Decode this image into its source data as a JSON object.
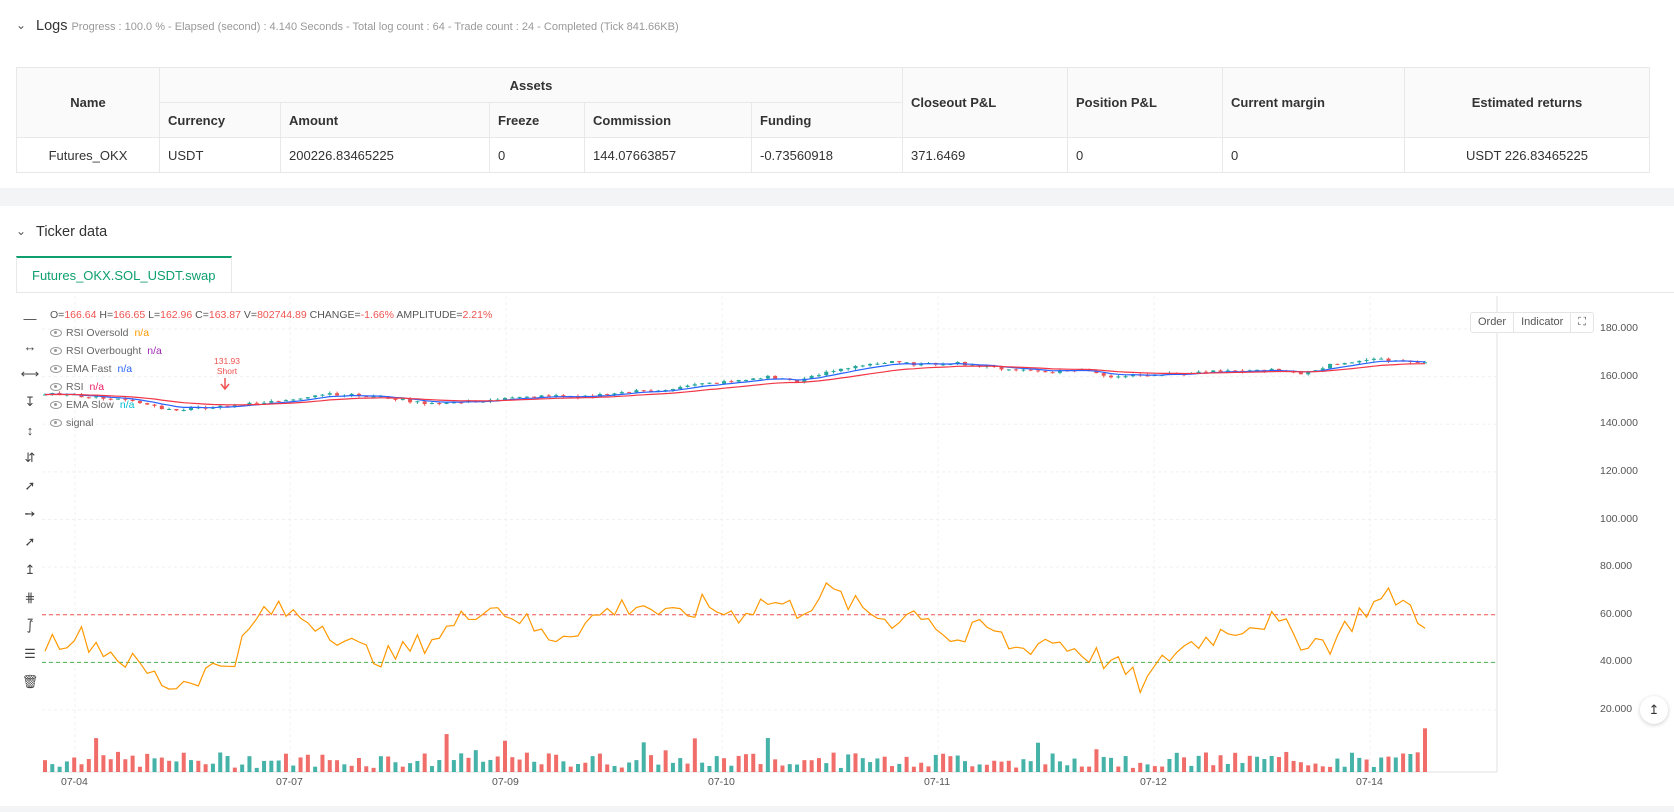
{
  "logs": {
    "title": "Logs",
    "status": "Progress : 100.0 % - Elapsed (second) : 4.140  Seconds - Total log count : 64 - Trade count : 24 - Completed (Tick 841.66KB)"
  },
  "assets_table": {
    "headers": {
      "name": "Name",
      "assets": "Assets",
      "currency": "Currency",
      "amount": "Amount",
      "freeze": "Freeze",
      "commission": "Commission",
      "funding": "Funding",
      "closeout": "Closeout P&L",
      "position": "Position P&L",
      "margin": "Current margin",
      "returns": "Estimated returns"
    },
    "row": {
      "name": "Futures_OKX",
      "currency": "USDT",
      "amount": "200226.83465225",
      "freeze": "0",
      "commission": "144.07663857",
      "funding": "-0.73560918",
      "closeout": "371.6469",
      "position": "0",
      "margin": "0",
      "returns": "USDT 226.83465225"
    }
  },
  "ticker": {
    "title": "Ticker data",
    "tab": "Futures_OKX.SOL_USDT.swap"
  },
  "chart": {
    "buttons": {
      "order": "Order",
      "indicator": "Indicator"
    },
    "ohlc": {
      "o_label": "O=",
      "o": "166.64",
      "h_label": "H=",
      "h": "166.65",
      "l_label": "L=",
      "l": "162.96",
      "c_label": "C=",
      "c": "163.87",
      "v_label": "V=",
      "v": "802744.89",
      "change_label": "CHANGE=",
      "change": "-1.66%",
      "amp_label": "AMPLITUDE=",
      "amp": "2.21%"
    },
    "legend": [
      {
        "name": "RSI Oversold",
        "value": "n/a",
        "color": "#ff9800"
      },
      {
        "name": "RSI Overbought",
        "value": "n/a",
        "color": "#9c27b0"
      },
      {
        "name": "EMA Fast",
        "value": "n/a",
        "color": "#2962ff"
      },
      {
        "name": "RSI",
        "value": "n/a",
        "color": "#e91e63"
      },
      {
        "name": "EMA Slow",
        "value": "n/a",
        "color": "#00bcd4"
      },
      {
        "name": "signal",
        "value": "",
        "color": "#999999"
      }
    ],
    "signal": {
      "price": "131.93",
      "label": "Short"
    },
    "y_ticks": [
      "180.000",
      "160.000",
      "140.000",
      "120.000",
      "100.000",
      "80.000",
      "60.000",
      "40.000",
      "20.000"
    ],
    "x_ticks": [
      "07-04",
      "07-07",
      "07-09",
      "07-10",
      "07-11",
      "07-12",
      "07-14"
    ],
    "colors": {
      "up": "#26a69a",
      "down": "#ef5350",
      "ema_fast": "#2962ff",
      "ema_slow": "#f23645",
      "rsi": "#ff9800",
      "overbought_line": "#ef5350",
      "oversold_line": "#4caf50"
    }
  },
  "chart_data": {
    "type": "line",
    "price_close_sampled": [
      153,
      152,
      151,
      149,
      146,
      147,
      148,
      149,
      151,
      153,
      152,
      151,
      149,
      149,
      150,
      151,
      152,
      151,
      153,
      154,
      155,
      157,
      158,
      160,
      158,
      162,
      165,
      166,
      165,
      166,
      164,
      163,
      162,
      163,
      160,
      161,
      161,
      162,
      162,
      163,
      161,
      165,
      167,
      167,
      166
    ],
    "rsi_sampled": [
      48,
      52,
      45,
      38,
      30,
      35,
      42,
      62,
      60,
      55,
      45,
      42,
      48,
      55,
      65,
      60,
      50,
      55,
      62,
      65,
      58,
      64,
      60,
      66,
      62,
      70,
      62,
      58,
      62,
      48,
      55,
      45,
      50,
      45,
      40,
      30,
      45,
      50,
      55,
      58,
      50,
      48,
      62,
      68,
      58
    ],
    "rsi_levels": {
      "overbought": 60,
      "oversold": 40
    },
    "x_labels": [
      "07-04",
      "07-07",
      "07-09",
      "07-10",
      "07-11",
      "07-12",
      "07-14"
    ],
    "y_range": [
      15,
      190
    ]
  }
}
